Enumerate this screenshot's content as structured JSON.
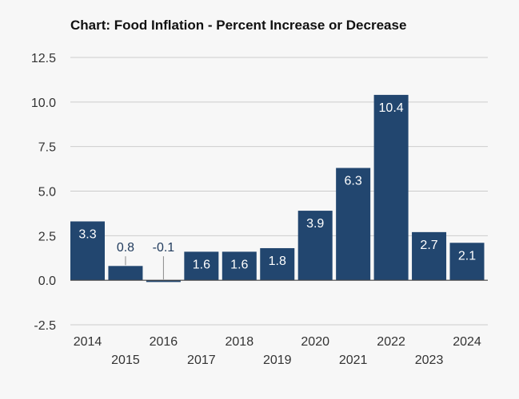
{
  "chart_data": {
    "type": "bar",
    "title": "Chart: Food Inflation - Percent Increase or Decrease",
    "xlabel": "",
    "ylabel": "",
    "categories": [
      "2014",
      "2015",
      "2016",
      "2017",
      "2018",
      "2019",
      "2020",
      "2021",
      "2022",
      "2023",
      "2024"
    ],
    "values": [
      3.3,
      0.8,
      -0.1,
      1.6,
      1.6,
      1.8,
      3.9,
      6.3,
      10.4,
      2.7,
      2.1
    ],
    "value_labels": [
      "3.3",
      "0.8",
      "-0.1",
      "1.6",
      "1.6",
      "1.8",
      "3.9",
      "6.3",
      "10.4",
      "2.7",
      "2.1"
    ],
    "ylim": [
      -2.5,
      12.5
    ],
    "yticks": [
      -2.5,
      0.0,
      2.5,
      5.0,
      7.5,
      10.0,
      12.5
    ],
    "ytick_labels": [
      "-2.5",
      "0.0",
      "2.5",
      "5.0",
      "7.5",
      "10.0",
      "12.5"
    ],
    "grid": true,
    "legend": "none",
    "colors": {
      "bar": "#22466f",
      "grid": "#cccccc",
      "label_inside": "#ffffff",
      "label_outside": "#1f3a5c",
      "background": "#f7f7f7"
    }
  }
}
